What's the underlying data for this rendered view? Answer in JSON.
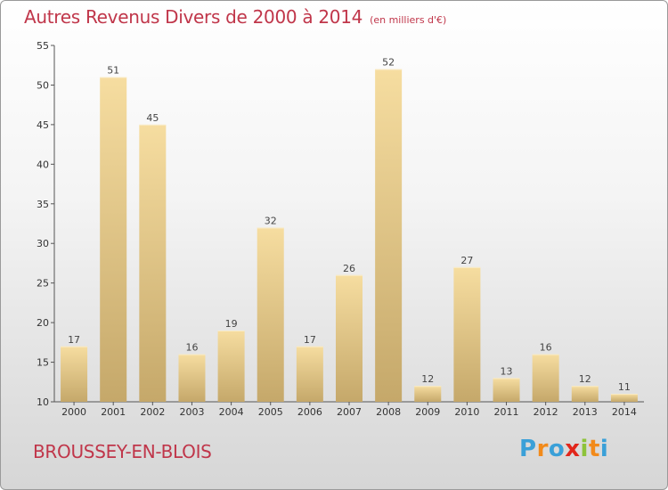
{
  "title": "Autres Revenus Divers de 2000 à 2014",
  "unit": "(en milliers d'€)",
  "location": "BROUSSEY-EN-BLOIS",
  "brand": {
    "letters": [
      "P",
      "r",
      "o",
      "x",
      "i",
      "t",
      "i"
    ],
    "colors": [
      "#3aa0d8",
      "#f28a1a",
      "#3aa0d8",
      "#e2261b",
      "#8dc33a",
      "#f28a1a",
      "#3aa0d8"
    ]
  },
  "colors": {
    "title": "#c0364a",
    "bar_top": "#f6dda0",
    "bar_bottom": "#c5a86a"
  },
  "chart_data": {
    "type": "bar",
    "categories": [
      "2000",
      "2001",
      "2002",
      "2003",
      "2004",
      "2005",
      "2006",
      "2007",
      "2008",
      "2009",
      "2010",
      "2011",
      "2012",
      "2013",
      "2014"
    ],
    "values": [
      17,
      51,
      45,
      16,
      19,
      32,
      17,
      26,
      52,
      12,
      27,
      13,
      16,
      12,
      11
    ],
    "ylim": [
      10,
      55
    ],
    "yticks": [
      10,
      15,
      20,
      25,
      30,
      35,
      40,
      45,
      50,
      55
    ],
    "grid": false,
    "xlabel": "",
    "ylabel": ""
  }
}
